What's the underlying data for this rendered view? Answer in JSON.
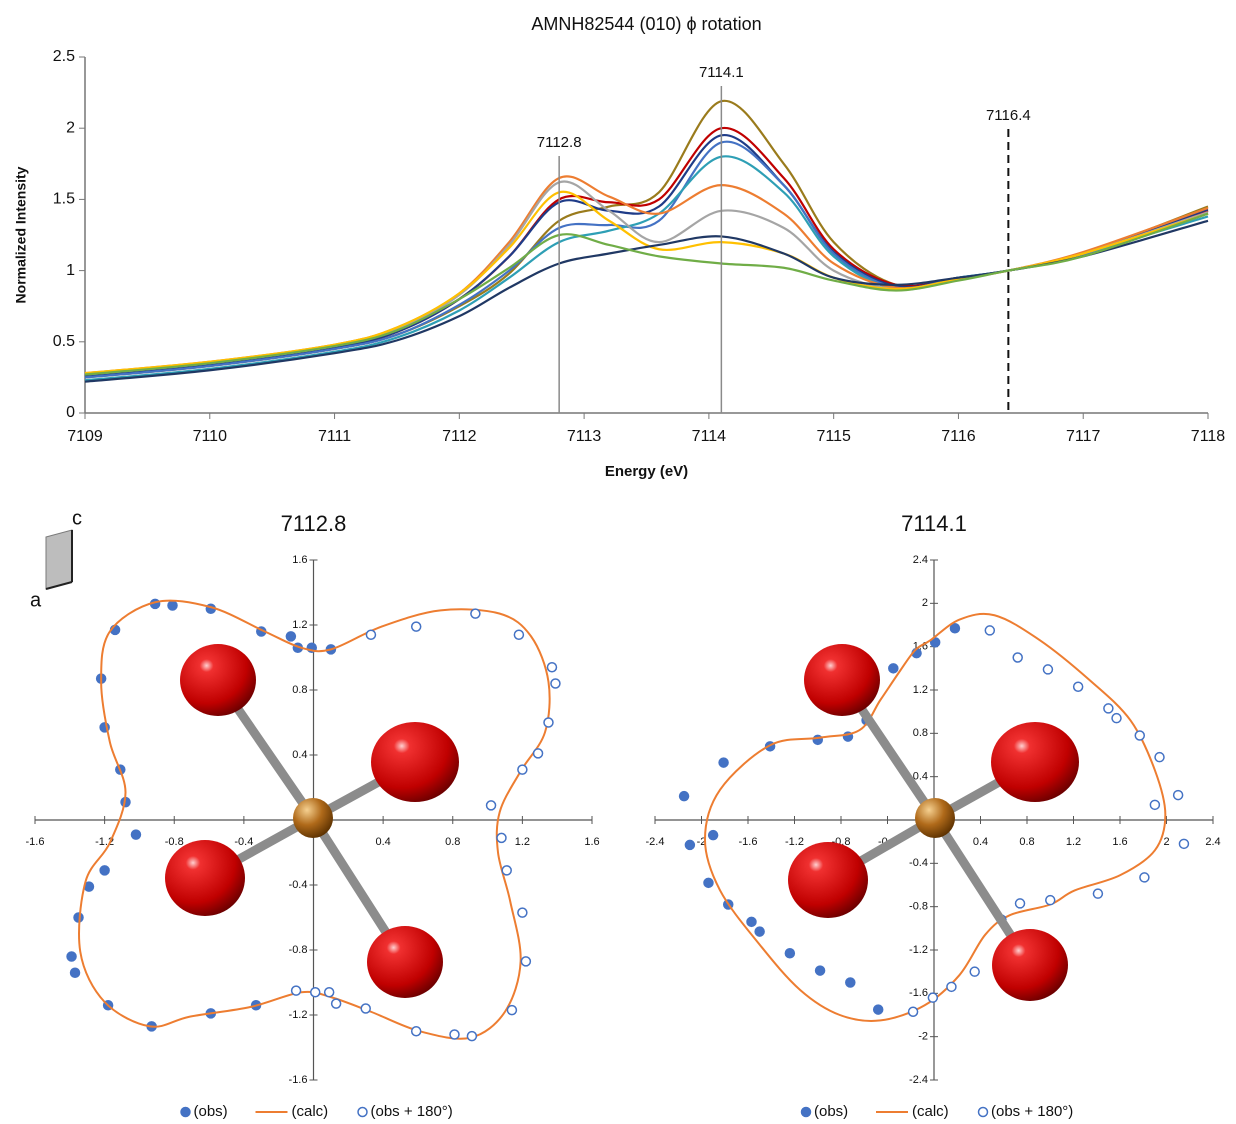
{
  "crystal_axes": {
    "vertical": "c",
    "horizontal": "a"
  },
  "chart_data": [
    {
      "type": "line",
      "title": "AMNH82544 (010) ϕ rotation",
      "x_label": "Energy (eV)",
      "y_label": "Normalized Intensity",
      "xlim": [
        7109,
        7118
      ],
      "xticks": [
        7109,
        7110,
        7111,
        7112,
        7113,
        7114,
        7115,
        7116,
        7117,
        7118
      ],
      "ylim": [
        0,
        2.5
      ],
      "yticks": [
        0,
        0.5,
        1,
        1.5,
        2,
        2.5
      ],
      "markers": [
        {
          "x": 7112.8,
          "dashed": false,
          "color": "#8a8a8a"
        },
        {
          "x": 7114.1,
          "dashed": false,
          "color": "#8a8a8a"
        },
        {
          "x": 7116.4,
          "dashed": true,
          "color": "#111111"
        }
      ],
      "x": [
        7109,
        7110,
        7111,
        7111.5,
        7112,
        7112.4,
        7112.8,
        7113.2,
        7113.6,
        7114.1,
        7114.6,
        7115,
        7115.5,
        7116,
        7116.4,
        7117,
        7118
      ],
      "series": [
        {
          "color": "#9a7b1c",
          "values": [
            0.25,
            0.33,
            0.45,
            0.55,
            0.75,
            0.98,
            1.35,
            1.45,
            1.55,
            2.19,
            1.75,
            1.2,
            0.9,
            0.95,
            1.0,
            1.12,
            1.45
          ]
        },
        {
          "color": "#c00000",
          "values": [
            0.26,
            0.34,
            0.46,
            0.57,
            0.8,
            1.1,
            1.5,
            1.48,
            1.5,
            2.0,
            1.65,
            1.15,
            0.9,
            0.95,
            1.0,
            1.12,
            1.42
          ]
        },
        {
          "color": "#1f3c88",
          "values": [
            0.26,
            0.34,
            0.46,
            0.57,
            0.8,
            1.1,
            1.48,
            1.42,
            1.45,
            1.95,
            1.6,
            1.13,
            0.89,
            0.95,
            1.0,
            1.12,
            1.43
          ]
        },
        {
          "color": "#4472c4",
          "values": [
            0.25,
            0.33,
            0.45,
            0.55,
            0.76,
            1.0,
            1.3,
            1.32,
            1.35,
            1.9,
            1.6,
            1.12,
            0.88,
            0.95,
            1.0,
            1.11,
            1.4
          ]
        },
        {
          "color": "#2e9fb5",
          "values": [
            0.23,
            0.31,
            0.43,
            0.53,
            0.72,
            0.95,
            1.2,
            1.28,
            1.4,
            1.8,
            1.55,
            1.1,
            0.87,
            0.95,
            1.0,
            1.12,
            1.38
          ]
        },
        {
          "color": "#ed7d31",
          "values": [
            0.28,
            0.36,
            0.48,
            0.6,
            0.84,
            1.2,
            1.65,
            1.52,
            1.4,
            1.6,
            1.4,
            1.05,
            0.88,
            0.94,
            1.0,
            1.13,
            1.44
          ]
        },
        {
          "color": "#a5a5a5",
          "values": [
            0.27,
            0.35,
            0.47,
            0.59,
            0.83,
            1.18,
            1.62,
            1.42,
            1.2,
            1.42,
            1.3,
            1.0,
            0.87,
            0.94,
            1.0,
            1.12,
            1.41
          ]
        },
        {
          "color": "#ffc000",
          "values": [
            0.28,
            0.36,
            0.48,
            0.6,
            0.84,
            1.16,
            1.55,
            1.35,
            1.15,
            1.2,
            1.12,
            0.95,
            0.87,
            0.94,
            1.0,
            1.12,
            1.4
          ]
        },
        {
          "color": "#203864",
          "values": [
            0.22,
            0.3,
            0.42,
            0.51,
            0.68,
            0.88,
            1.05,
            1.12,
            1.18,
            1.24,
            1.12,
            0.95,
            0.9,
            0.95,
            1.0,
            1.1,
            1.35
          ]
        },
        {
          "color": "#70ad47",
          "values": [
            0.27,
            0.35,
            0.47,
            0.58,
            0.8,
            1.02,
            1.25,
            1.18,
            1.1,
            1.05,
            1.02,
            0.93,
            0.86,
            0.93,
            1.0,
            1.1,
            1.4
          ]
        }
      ]
    },
    {
      "type": "scatter",
      "title": "7112.8",
      "xlim": [
        -1.6,
        1.6
      ],
      "xticks": [
        -1.6,
        -1.2,
        -0.8,
        -0.4,
        0.4,
        0.8,
        1.2,
        1.6
      ],
      "ylim": [
        -1.6,
        1.6
      ],
      "yticks": [
        -1.6,
        -1.2,
        -0.8,
        -0.4,
        0.4,
        0.8,
        1.2,
        1.6
      ],
      "series": [
        {
          "name": "(obs)",
          "color": "#4472c4",
          "style": "filled",
          "x": [
            -0.91,
            -0.81,
            -0.59,
            -0.3,
            -0.13,
            -0.09,
            -0.01,
            0.1,
            -1.14,
            -1.22,
            -1.2,
            -1.11,
            -1.08,
            -1.02,
            -1.2,
            -1.29,
            -1.35,
            -1.39,
            -1.37,
            -1.18,
            -0.93,
            -0.59,
            -0.33
          ],
          "values": [
            1.33,
            1.32,
            1.3,
            1.16,
            1.13,
            1.06,
            1.06,
            1.05,
            1.17,
            0.87,
            0.57,
            0.31,
            0.11,
            -0.09,
            -0.31,
            -0.41,
            -0.6,
            -0.84,
            -0.94,
            -1.14,
            -1.27,
            -1.19,
            -1.14
          ]
        },
        {
          "name": "(calc)",
          "color": "#ed7d31",
          "style": "line",
          "closed": true,
          "x": [
            -0.07,
            0.1,
            0.39,
            0.73,
            1.07,
            1.25,
            1.35,
            1.33,
            1.19,
            1.07,
            1.06,
            1.13,
            1.19,
            1.1,
            0.9,
            0.61,
            0.33,
            0.1,
            -0.07,
            -0.36,
            -0.71,
            -0.94,
            -1.2,
            -1.34,
            -1.31,
            -1.17,
            -1.08,
            -1.17,
            -1.22,
            -1.17,
            -0.91,
            -0.59,
            -0.28
          ],
          "values": [
            1.06,
            1.05,
            1.19,
            1.29,
            1.27,
            1.13,
            0.85,
            0.54,
            0.3,
            0.05,
            -0.2,
            -0.5,
            -0.87,
            -1.18,
            -1.34,
            -1.3,
            -1.18,
            -1.09,
            -1.06,
            -1.15,
            -1.21,
            -1.27,
            -1.12,
            -0.81,
            -0.38,
            -0.14,
            0.17,
            0.48,
            0.85,
            1.16,
            1.34,
            1.31,
            1.16
          ]
        },
        {
          "name": "(obs + 180°)",
          "color": "#4472c4",
          "style": "open",
          "x": [
            0.91,
            0.81,
            0.59,
            0.3,
            0.13,
            0.09,
            0.01,
            -0.1,
            1.14,
            1.22,
            1.2,
            1.11,
            1.08,
            1.02,
            1.2,
            1.29,
            1.35,
            1.39,
            1.37,
            1.18,
            0.93,
            0.59,
            0.33
          ],
          "values": [
            -1.33,
            -1.32,
            -1.3,
            -1.16,
            -1.13,
            -1.06,
            -1.06,
            -1.05,
            -1.17,
            -0.87,
            -0.57,
            -0.31,
            -0.11,
            0.09,
            0.31,
            0.41,
            0.6,
            0.84,
            0.94,
            1.14,
            1.27,
            1.19,
            1.14
          ]
        }
      ]
    },
    {
      "type": "scatter",
      "title": "7114.1",
      "xlim": [
        -2.4,
        2.4
      ],
      "xticks": [
        -2.4,
        -2,
        -1.6,
        -1.2,
        -0.8,
        -0.4,
        0.4,
        0.8,
        1.2,
        1.6,
        2,
        2.4
      ],
      "ylim": [
        -2.4,
        2.4
      ],
      "yticks": [
        -2.4,
        -2,
        -1.6,
        -1.2,
        -0.8,
        -0.4,
        0.4,
        0.8,
        1.2,
        1.6,
        2,
        2.4
      ],
      "series": [
        {
          "name": "(obs)",
          "color": "#4472c4",
          "style": "filled",
          "x": [
            0.01,
            -0.15,
            -0.35,
            -0.58,
            -0.74,
            -1.0,
            -1.41,
            -1.81,
            -2.15,
            -2.1,
            -1.9,
            -1.94,
            -1.77,
            -1.57,
            -1.5,
            -1.24,
            -0.98,
            -0.72,
            -0.48,
            0.18
          ],
          "values": [
            1.64,
            1.54,
            1.4,
            0.92,
            0.77,
            0.74,
            0.68,
            0.53,
            0.22,
            -0.23,
            -0.14,
            -0.58,
            -0.78,
            -0.94,
            -1.03,
            -1.23,
            -1.39,
            -1.5,
            -1.75,
            1.77
          ]
        },
        {
          "name": "(calc)",
          "color": "#ed7d31",
          "style": "line",
          "closed": true,
          "x": [
            -0.03,
            0.22,
            0.52,
            0.91,
            1.34,
            1.69,
            1.9,
            1.99,
            1.9,
            1.6,
            1.21,
            1.0,
            0.65,
            0.44,
            0.22,
            -0.08,
            -0.46,
            -0.81,
            -1.15,
            -1.5,
            -1.84,
            -1.97,
            -1.84,
            -1.41,
            -0.98,
            -0.64,
            -0.46,
            -0.29,
            -0.16
          ],
          "values": [
            1.66,
            1.85,
            1.89,
            1.66,
            1.29,
            0.92,
            0.46,
            0.05,
            -0.28,
            -0.51,
            -0.65,
            -0.78,
            -0.88,
            -1.06,
            -1.43,
            -1.71,
            -1.85,
            -1.8,
            -1.57,
            -1.15,
            -0.65,
            -0.18,
            0.28,
            0.69,
            0.76,
            0.83,
            1.11,
            1.38,
            1.57
          ]
        },
        {
          "name": "(obs + 180°)",
          "color": "#4472c4",
          "style": "open",
          "x": [
            -0.01,
            0.15,
            0.35,
            0.58,
            0.74,
            1.0,
            1.41,
            1.81,
            2.15,
            2.1,
            1.9,
            1.94,
            1.77,
            1.57,
            1.5,
            1.24,
            0.98,
            0.72,
            0.48,
            -0.18
          ],
          "values": [
            -1.64,
            -1.54,
            -1.4,
            -0.92,
            -0.77,
            -0.74,
            -0.68,
            -0.53,
            -0.22,
            0.23,
            0.14,
            0.58,
            0.78,
            0.94,
            1.03,
            1.23,
            1.39,
            1.5,
            1.75,
            -1.77
          ]
        }
      ]
    }
  ]
}
